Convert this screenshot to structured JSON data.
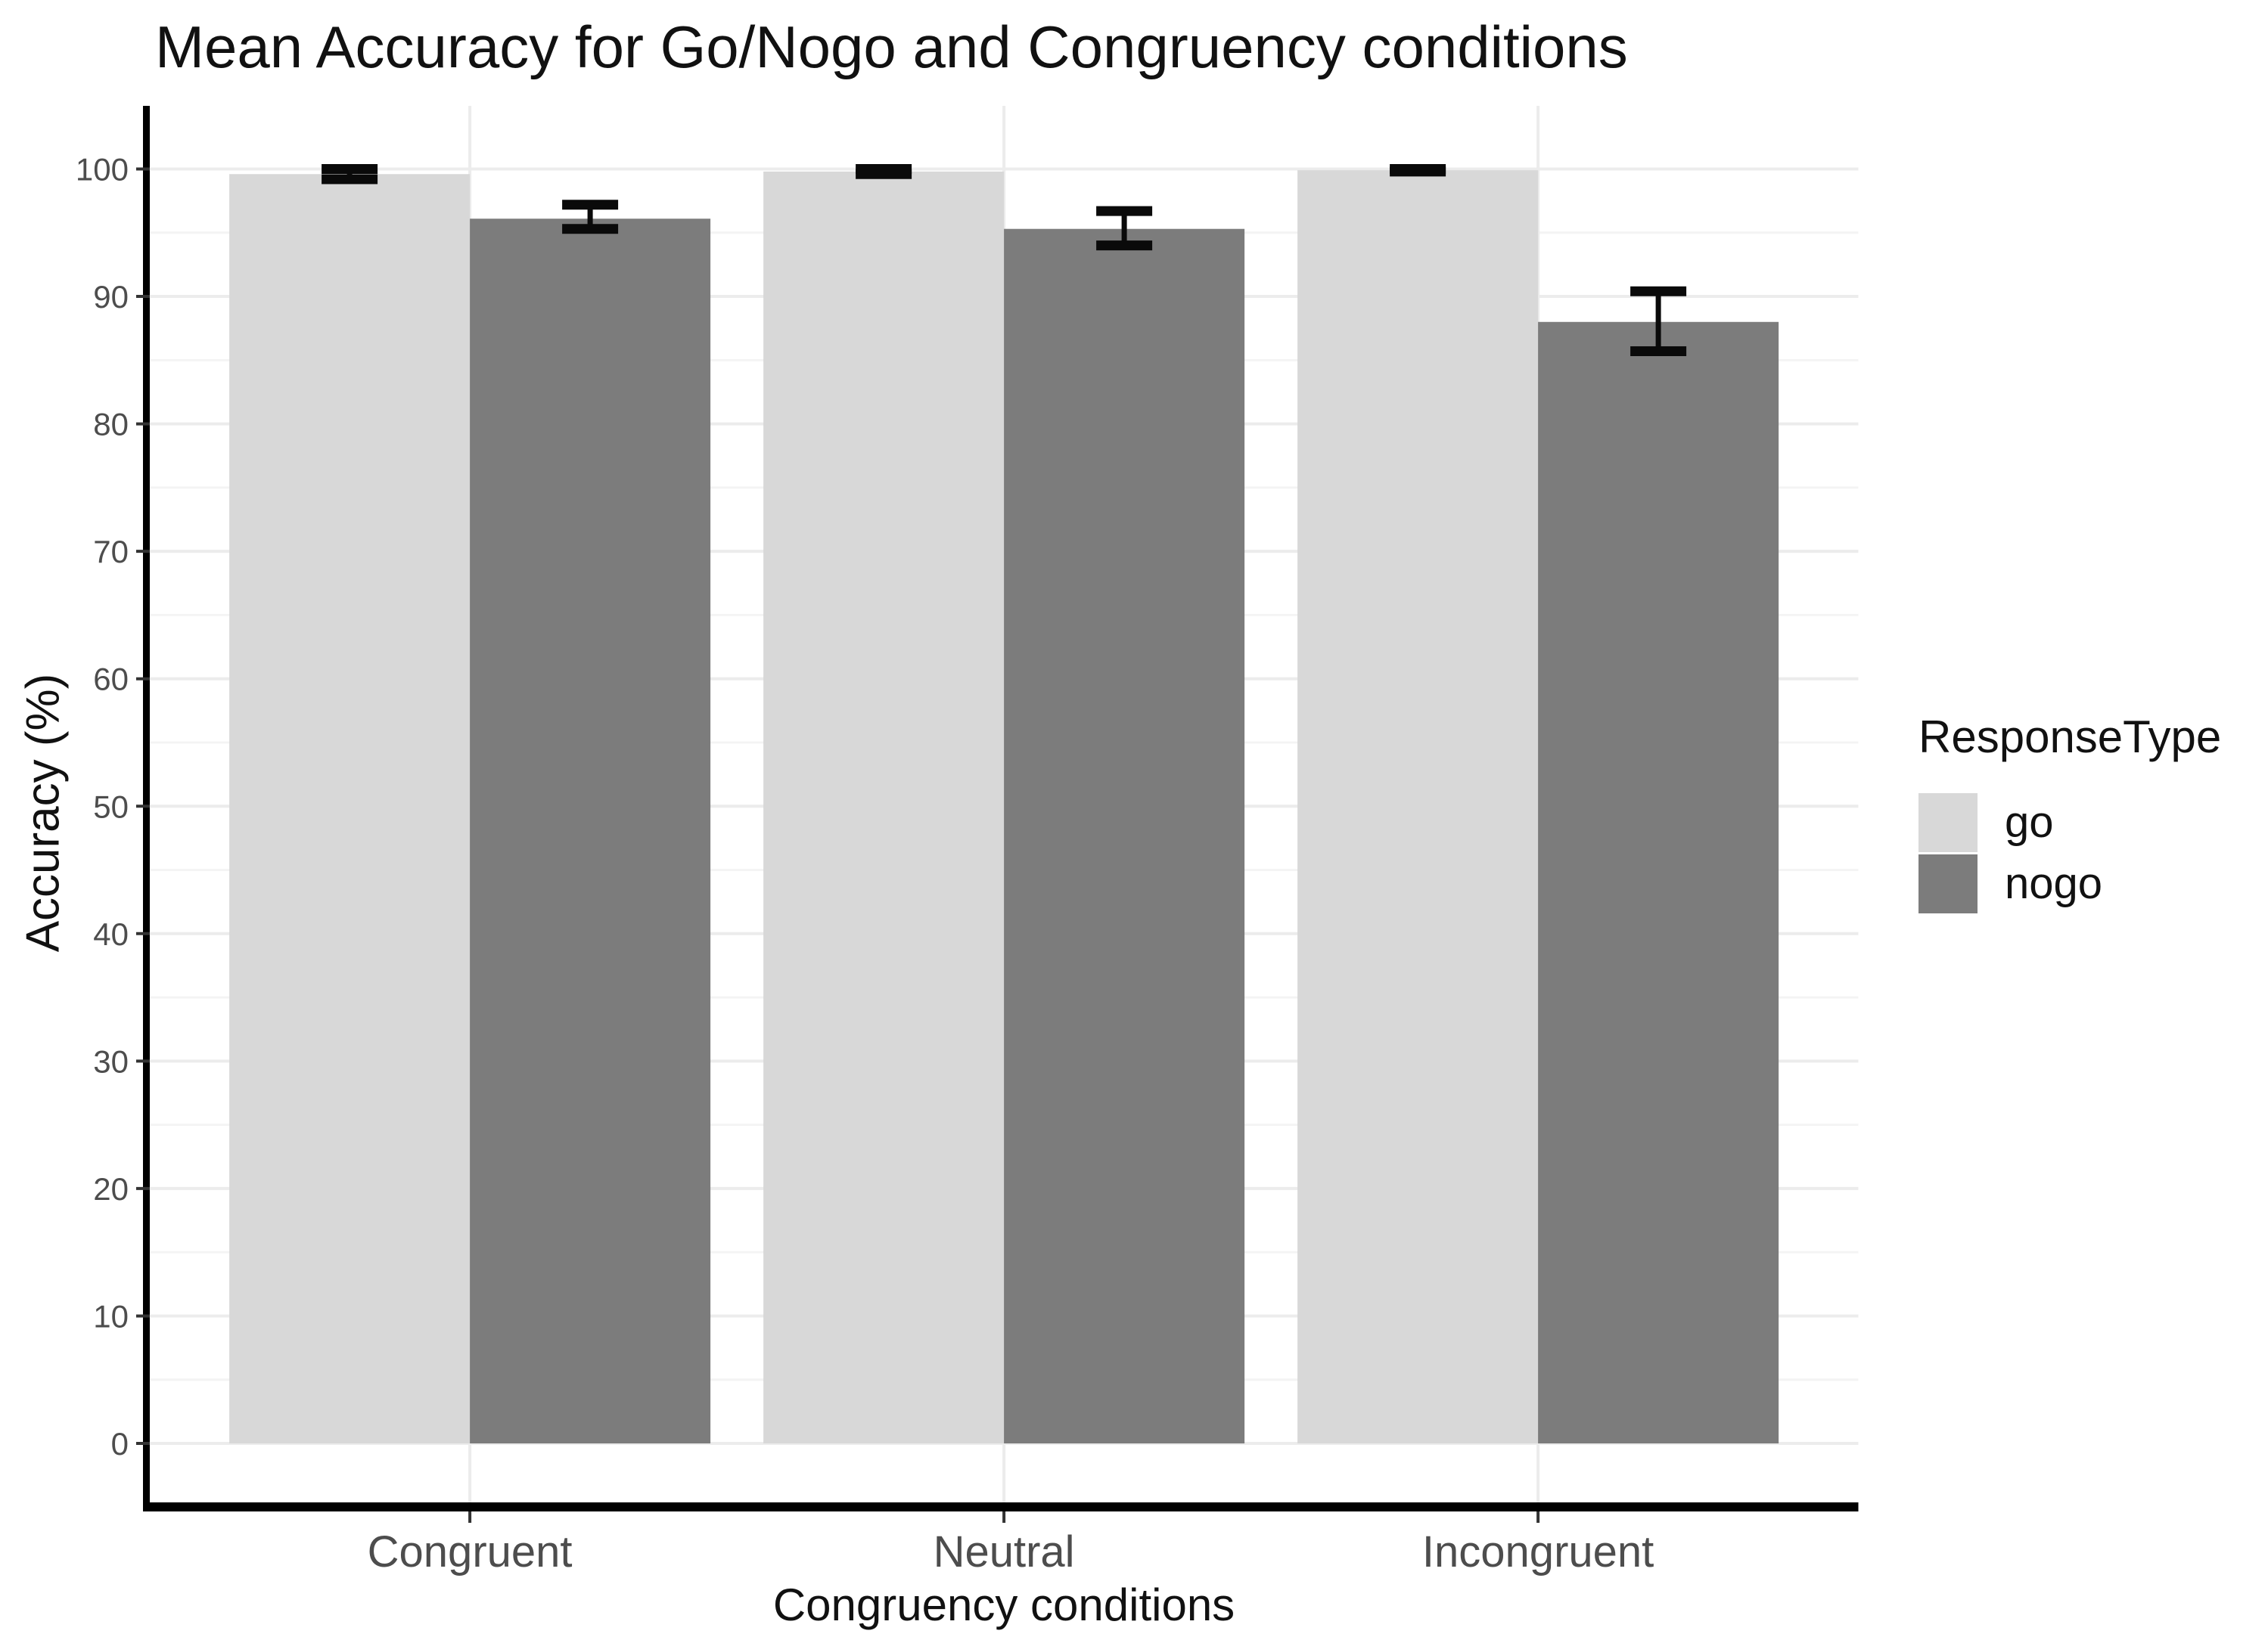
{
  "chart_data": {
    "type": "bar",
    "subtype": "grouped-with-error-bars",
    "title": "Mean Accuracy for Go/Nogo and Congruency conditions",
    "xlabel": "Congruency conditions",
    "ylabel": "Accuracy (%)",
    "categories": [
      "Congruent",
      "Neutral",
      "Incongruent"
    ],
    "series": [
      {
        "name": "go",
        "color": "#d8d8d8",
        "values": [
          99.6,
          99.8,
          99.9
        ],
        "ci_low": [
          99.2,
          99.6,
          99.8
        ],
        "ci_high": [
          100.0,
          100.0,
          100.0
        ]
      },
      {
        "name": "nogo",
        "color": "#7c7c7c",
        "values": [
          96.1,
          95.3,
          88.0
        ],
        "ci_low": [
          95.3,
          94.0,
          85.7
        ],
        "ci_high": [
          97.2,
          96.7,
          90.4
        ]
      }
    ],
    "ylim": [
      0,
      100
    ],
    "yticks": [
      0,
      10,
      20,
      30,
      40,
      50,
      60,
      70,
      80,
      90,
      100
    ],
    "grid": "on",
    "legend_title": "ResponseType",
    "legend_position": "right"
  },
  "legend": {
    "title": "ResponseType",
    "items": [
      {
        "label": "go",
        "color": "#d8d8d8"
      },
      {
        "label": "nogo",
        "color": "#7c7c7c"
      }
    ]
  },
  "colors": {
    "bar_go": "#d8d8d8",
    "bar_nogo": "#7c7c7c",
    "error_bar": "#0a0a0a",
    "axis_line": "#000000",
    "tick_mark": "#333333",
    "tick_label": "#4d4d4d",
    "grid_major": "#ececec",
    "grid_minor": "#f4f4f4",
    "background": "#ffffff",
    "text": "#111111"
  }
}
